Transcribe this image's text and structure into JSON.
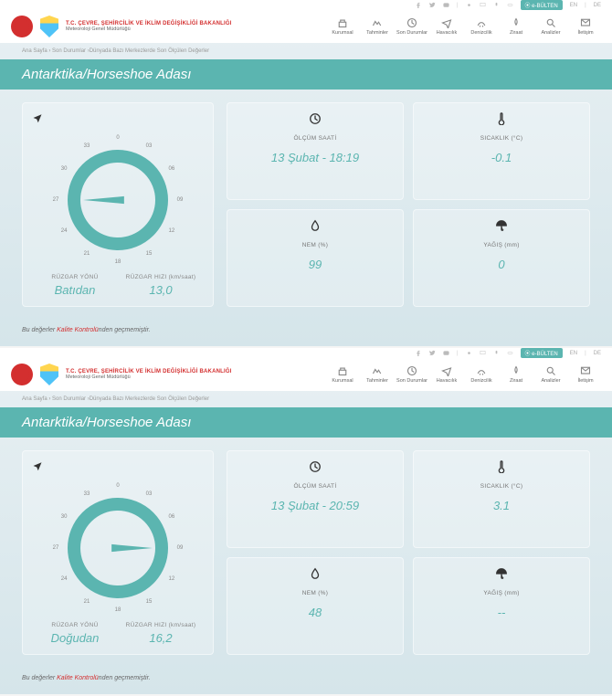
{
  "topbar": {
    "ebulten": "e-BÜLTEN",
    "lang1": "EN",
    "lang2": "DE"
  },
  "header": {
    "title1": "T.C. ÇEVRE, ŞEHİRCİLİK VE İKLİM DEĞİŞİKLİĞİ BAKANLIĞI",
    "title2": "Meteoroloji Genel Müdürlüğü"
  },
  "nav": [
    {
      "label": "Kurumsal"
    },
    {
      "label": "Tahminler"
    },
    {
      "label": "Son Durumlar"
    },
    {
      "label": "Havacılık"
    },
    {
      "label": "Denizcilik"
    },
    {
      "label": "Ziraat"
    },
    {
      "label": "Analizler"
    },
    {
      "label": "İletişim"
    }
  ],
  "breadcrumb": "Ana Sayfa › Son Durumlar ›Dünyada Bazı Merkezlerde Son Ölçülen Değerler",
  "page_title": "Antarktika/Horseshoe Adası",
  "labels": {
    "wind_dir": "RÜZGAR YÖNÜ",
    "wind_speed": "RÜZGAR HIZI (km/saat)",
    "time": "ÖLÇÜM SAATİ",
    "temp": "SICAKLIK (°C)",
    "humidity": "NEM (%)",
    "precip": "YAĞIŞ (mm)"
  },
  "compass_ticks": [
    "0",
    "03",
    "06",
    "09",
    "12",
    "15",
    "18",
    "21",
    "24",
    "27",
    "30",
    "33"
  ],
  "panels": [
    {
      "wind_dir": "Batıdan",
      "wind_speed": "13,0",
      "time": "13 Şubat - 18:19",
      "temp": "-0.1",
      "humidity": "99",
      "precip": "0",
      "arrow_deg": 270
    },
    {
      "wind_dir": "Doğudan",
      "wind_speed": "16,2",
      "time": "13 Şubat - 20:59",
      "temp": "3.1",
      "humidity": "48",
      "precip": "--",
      "arrow_deg": 90
    }
  ],
  "footer": {
    "pre": "Bu değerler ",
    "red": "Kalite Kontrolü",
    "post": "nden geçmemiştir."
  },
  "colors": {
    "accent": "#5bb5b0",
    "red": "#d32f2f"
  }
}
